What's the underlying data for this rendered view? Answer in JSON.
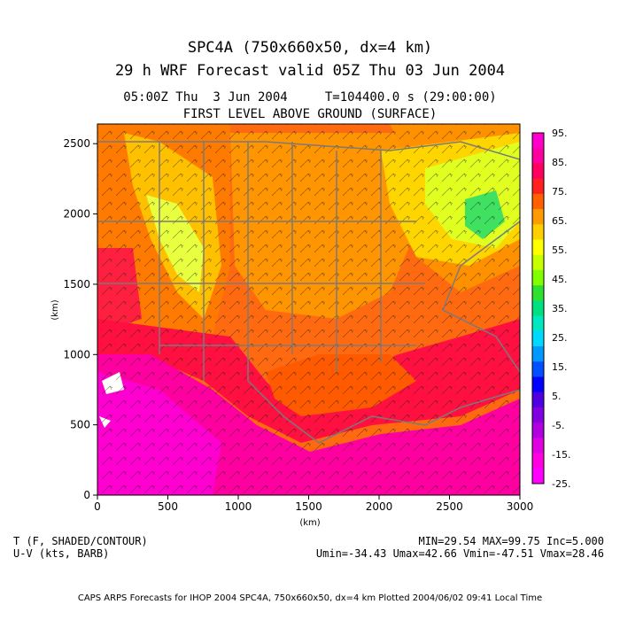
{
  "title": {
    "line1": "SPC4A (750x660x50, dx=4 km)",
    "line2": "29 h WRF Forecast valid 05Z Thu 03 Jun 2004",
    "line3": "05:00Z Thu  3 Jun 2004     T=104400.0 s (29:00:00)",
    "line4": "FIRST LEVEL ABOVE GROUND (SURFACE)"
  },
  "axes": {
    "xlabel": "(km)",
    "ylabel": "(km)",
    "xticks": [
      "0",
      "500",
      "1000",
      "1500",
      "2000",
      "2500",
      "3000"
    ],
    "yticks": [
      "0",
      "500",
      "1000",
      "1500",
      "2000",
      "2500"
    ],
    "xrange_km": [
      0,
      3000
    ],
    "yrange_km": [
      0,
      2640
    ]
  },
  "colorbar": {
    "labels": [
      "95.",
      "85.",
      "75.",
      "65.",
      "55.",
      "45.",
      "35.",
      "25.",
      "15.",
      "5.",
      "-5.",
      "-15.",
      "-25."
    ],
    "colors": [
      "#ff00cc",
      "#ff00a0",
      "#ff0060",
      "#ff2020",
      "#ff6000",
      "#ff9a00",
      "#ffd000",
      "#ffff00",
      "#c8ff00",
      "#80ff00",
      "#30e030",
      "#00e080",
      "#00e8c0",
      "#00d8ff",
      "#0098ff",
      "#0050ff",
      "#0000ff",
      "#5000e0",
      "#8000e0",
      "#b000e0",
      "#e000e0",
      "#ff00e0",
      "#ff00ff"
    ]
  },
  "bottom_left": {
    "line1": "T (F, SHADED/CONTOUR)",
    "line2": "U-V (kts, BARB)"
  },
  "bottom_right": {
    "line1": "MIN=29.54 MAX=99.75 Inc=5.000",
    "line2": "Umin=-34.43 Umax=42.66 Vmin=-47.51 Vmax=28.46"
  },
  "footer": "CAPS ARPS Forecasts for IHOP 2004  SPC4A, 750x660x50, dx=4 km  Plotted 2004/06/02 09:41 Local Time"
}
